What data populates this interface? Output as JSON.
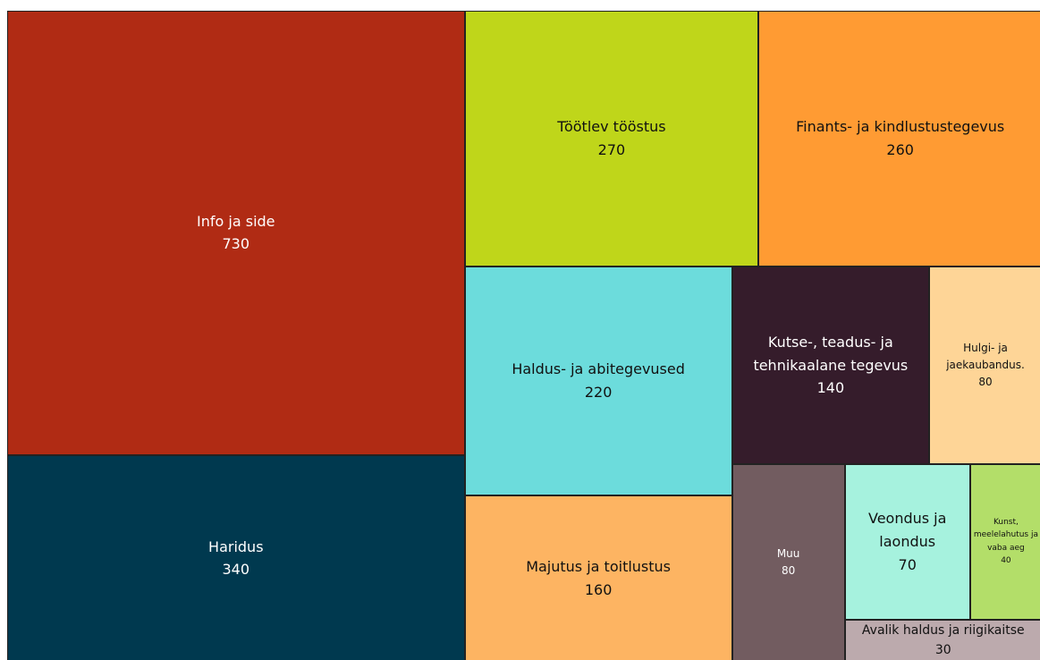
{
  "chart_data": {
    "type": "treemap",
    "categories": [
      "Info ja side",
      "Haridus",
      "Töötlev tööstus",
      "Finants- ja kindlustustegevus",
      "Haldus- ja abitegevused",
      "Majutus ja toitlustus",
      "Kutse-, teadus- ja tehnikaalane tegevus",
      "Hulgi- ja jaekaubandus.",
      "Muu",
      "Veondus ja laondus",
      "Kunst, meelelahutus ja vaba aeg",
      "Avalik haldus ja riigikaitse"
    ],
    "values": [
      730,
      340,
      270,
      260,
      220,
      160,
      140,
      80,
      80,
      70,
      40,
      30
    ],
    "colors": [
      "#b02b14",
      "#00394f",
      "#bfd61a",
      "#ff9b33",
      "#6cdcdc",
      "#fdb462",
      "#351c2b",
      "#fed597",
      "#725c60",
      "#a6f2de",
      "#b3de69",
      "#bcaaad"
    ]
  }
}
